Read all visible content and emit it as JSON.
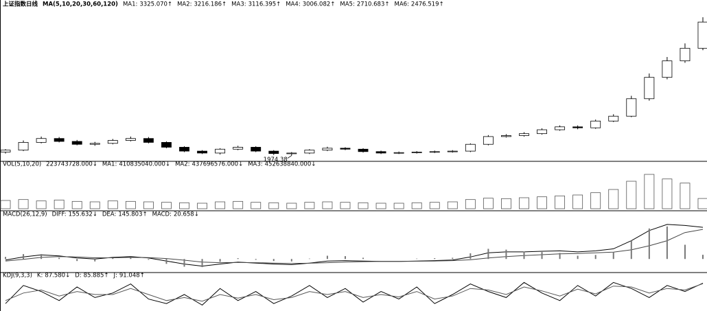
{
  "chart_data": [
    {
      "type": "candlestick",
      "title": "上证指数日线",
      "subtitle": "MA(5,10,20,30,60,120)",
      "readouts": [
        {
          "name": "MA1:",
          "value_label": "3325.070↑"
        },
        {
          "name": "MA2:",
          "value_label": "3216.186↑"
        },
        {
          "name": "MA3:",
          "value_label": "3116.395↑"
        },
        {
          "name": "MA4:",
          "value_label": "3006.082↑"
        },
        {
          "name": "MA5:",
          "value_label": "2710.683↑"
        },
        {
          "name": "MA6:",
          "value_label": "2476.519↑"
        }
      ],
      "open": [
        2010,
        2030,
        2110,
        2150,
        2120,
        2090,
        2100,
        2130,
        2150,
        2110,
        2060,
        2020,
        2000,
        2040,
        2060,
        2020,
        1995,
        2000,
        2030,
        2050,
        2040,
        2015,
        2000,
        2005,
        2010,
        2015,
        2020,
        2090,
        2170,
        2180,
        2200,
        2240,
        2270,
        2260,
        2330,
        2380,
        2560,
        2780,
        2950,
        3080
      ],
      "high": [
        2040,
        2130,
        2170,
        2165,
        2135,
        2115,
        2145,
        2170,
        2165,
        2120,
        2070,
        2030,
        2050,
        2075,
        2070,
        2030,
        2010,
        2040,
        2065,
        2060,
        2050,
        2025,
        2015,
        2020,
        2025,
        2030,
        2100,
        2185,
        2195,
        2215,
        2255,
        2285,
        2285,
        2345,
        2400,
        2590,
        2820,
        2990,
        3130,
        3400
      ],
      "low": [
        1995,
        2020,
        2100,
        2110,
        2080,
        2075,
        2090,
        2120,
        2100,
        2050,
        2010,
        1990,
        1985,
        2030,
        2010,
        1980,
        1974.38,
        1990,
        2020,
        2030,
        2005,
        1990,
        1990,
        1995,
        2000,
        2005,
        2010,
        2080,
        2160,
        2170,
        2190,
        2230,
        2245,
        2250,
        2320,
        2370,
        2540,
        2760,
        2930,
        3060
      ],
      "close": [
        2030,
        2110,
        2150,
        2120,
        2090,
        2100,
        2130,
        2150,
        2110,
        2060,
        2020,
        2000,
        2040,
        2060,
        2020,
        1995,
        2000,
        2030,
        2050,
        2040,
        2015,
        2000,
        2005,
        2010,
        2015,
        2020,
        2090,
        2170,
        2180,
        2200,
        2240,
        2270,
        2260,
        2330,
        2380,
        2560,
        2780,
        2950,
        3080,
        3350
      ],
      "low_label": {
        "value": 1974.38,
        "label": "1974.38"
      },
      "ylim": [
        1950,
        3450
      ]
    },
    {
      "type": "bar",
      "title": "VOL(5,10,20)",
      "current_label": "223743728.000↓",
      "readouts": [
        {
          "name": "MA1:",
          "value_label": "410835040.000↓"
        },
        {
          "name": "MA2:",
          "value_label": "437696576.000↓"
        },
        {
          "name": "MA3:",
          "value_label": "452638840.000↓"
        }
      ],
      "values": [
        180000000,
        200000000,
        170000000,
        190000000,
        160000000,
        150000000,
        170000000,
        160000000,
        150000000,
        140000000,
        130000000,
        120000000,
        150000000,
        160000000,
        140000000,
        130000000,
        120000000,
        140000000,
        150000000,
        140000000,
        130000000,
        120000000,
        120000000,
        130000000,
        140000000,
        150000000,
        200000000,
        230000000,
        220000000,
        240000000,
        260000000,
        280000000,
        300000000,
        350000000,
        420000000,
        600000000,
        750000000,
        650000000,
        560000000,
        223743728
      ],
      "color": "#555555",
      "ylim": [
        0,
        900000000
      ]
    },
    {
      "type": "line",
      "title": "MACD(26,12,9)",
      "series": [
        {
          "name": "DIFF:",
          "value_label": "155.632↓",
          "color": "#000000",
          "values": [
            -5,
            10,
            20,
            15,
            5,
            0,
            8,
            12,
            5,
            -10,
            -25,
            -35,
            -25,
            -15,
            -20,
            -25,
            -28,
            -20,
            -10,
            -8,
            -10,
            -12,
            -12,
            -10,
            -8,
            -5,
            10,
            30,
            35,
            35,
            38,
            40,
            35,
            40,
            50,
            90,
            140,
            170,
            165,
            155.632
          ]
        },
        {
          "name": "DEA:",
          "value_label": "145.803↑",
          "color": "#444444",
          "values": [
            -10,
            -2,
            8,
            12,
            10,
            6,
            6,
            8,
            7,
            2,
            -6,
            -15,
            -18,
            -17,
            -18,
            -20,
            -22,
            -21,
            -18,
            -15,
            -13,
            -12,
            -12,
            -11,
            -10,
            -8,
            -4,
            5,
            12,
            17,
            21,
            25,
            27,
            30,
            34,
            45,
            65,
            90,
            130,
            145.803
          ]
        },
        {
          "name": "MACD:",
          "value_label": "20.658↓",
          "color": "#777777",
          "style": "bar",
          "values": [
            10,
            24,
            24,
            6,
            -10,
            -12,
            4,
            8,
            -4,
            -24,
            -38,
            -40,
            -14,
            4,
            -4,
            -10,
            -12,
            2,
            16,
            14,
            6,
            0,
            0,
            2,
            4,
            6,
            28,
            50,
            46,
            36,
            34,
            30,
            16,
            20,
            32,
            90,
            150,
            160,
            70,
            20.658
          ]
        }
      ],
      "ylim": [
        -60,
        200
      ]
    },
    {
      "type": "line",
      "title": "KDJ(9,3,3)",
      "series": [
        {
          "name": "K:",
          "value_label": "87.580↓",
          "color": "#000000",
          "values": [
            20,
            80,
            60,
            30,
            75,
            40,
            55,
            85,
            35,
            20,
            50,
            15,
            70,
            30,
            60,
            20,
            45,
            80,
            40,
            70,
            25,
            60,
            35,
            75,
            20,
            50,
            85,
            60,
            40,
            90,
            55,
            30,
            80,
            45,
            90,
            70,
            40,
            80,
            60,
            87.58
          ]
        },
        {
          "name": "D:",
          "value_label": "85.885↑",
          "color": "#555555",
          "values": [
            30,
            55,
            65,
            45,
            60,
            50,
            50,
            70,
            50,
            30,
            40,
            28,
            50,
            38,
            50,
            33,
            40,
            60,
            50,
            60,
            40,
            50,
            42,
            60,
            35,
            45,
            70,
            65,
            50,
            75,
            62,
            45,
            68,
            52,
            78,
            75,
            55,
            70,
            65,
            85.885
          ]
        }
      ],
      "readouts": [
        {
          "name": "J:",
          "value_label": "91.048↑"
        }
      ],
      "ylim": [
        0,
        100
      ]
    }
  ]
}
